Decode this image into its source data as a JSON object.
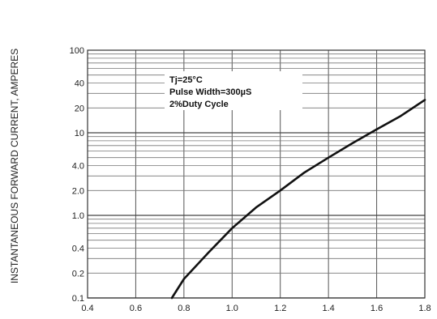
{
  "chart_data": {
    "type": "line",
    "title": "",
    "xlabel": "",
    "ylabel": "INSTANTANEOUS FORWARD CURRENT, AMPERES",
    "xlim": [
      0.4,
      1.8
    ],
    "ylim": [
      0.1,
      100
    ],
    "yscale": "log",
    "grid": true,
    "x_ticks": [
      0.4,
      0.6,
      0.8,
      1.0,
      1.2,
      1.4,
      1.6,
      1.8
    ],
    "x_tick_labels": [
      "0.4",
      "0.6",
      "0.8",
      "1.0",
      "1.2",
      "1.4",
      "1.6",
      "1.8"
    ],
    "y_tick_values": [
      0.1,
      0.2,
      0.4,
      1.0,
      2.0,
      4.0,
      10,
      20,
      40,
      100
    ],
    "y_tick_labels": [
      "0.1",
      "0.2",
      "0.4",
      "1.0",
      "2.0",
      "4.0",
      "10",
      "20",
      "40",
      "100"
    ],
    "annotations": [
      "Tj=25°C",
      "Pulse Width=300µS",
      "2%Duty Cycle"
    ],
    "series": [
      {
        "x": [
          0.75,
          0.8,
          0.9,
          1.0,
          1.1,
          1.2,
          1.3,
          1.4,
          1.5,
          1.6,
          1.7,
          1.8
        ],
        "values": [
          0.1,
          0.17,
          0.35,
          0.7,
          1.25,
          2.0,
          3.3,
          5.0,
          7.5,
          11.0,
          16.0,
          25.0
        ]
      }
    ]
  }
}
